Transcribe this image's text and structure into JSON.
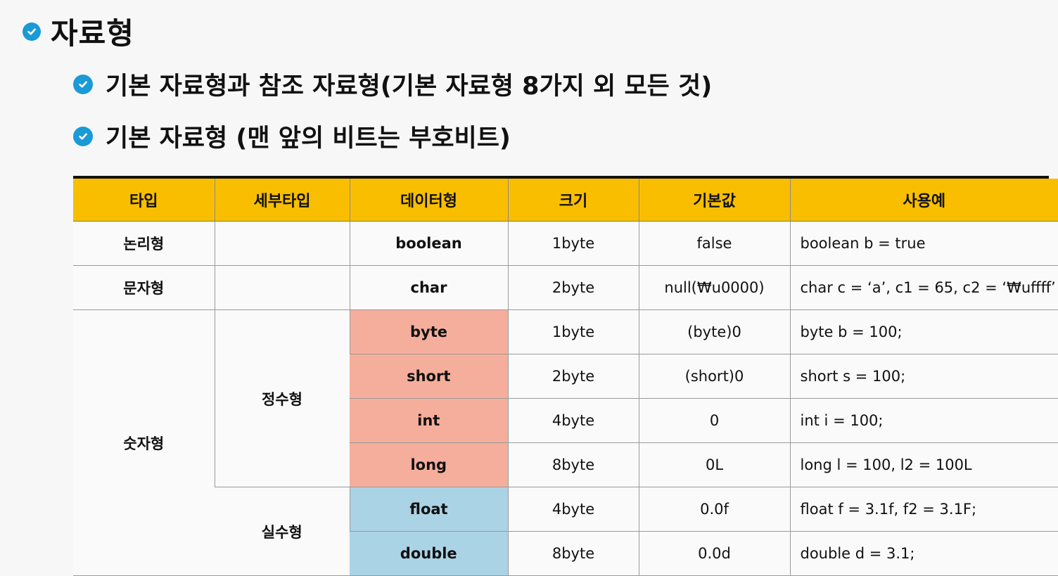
{
  "heading": "자료형",
  "bullets": [
    "기본 자료형과 참조 자료형(기본 자료형 8가지 외 모든 것)",
    "기본 자료형 (맨 앞의 비트는 부호비트)"
  ],
  "colors": {
    "header_bg": "#f9be00",
    "integer_bg": "#f5ae9b",
    "real_bg": "#abd3e6",
    "check_icon": "#1a9ad6"
  },
  "table": {
    "headers": [
      "타입",
      "세부타입",
      "데이터형",
      "크기",
      "기본값",
      "사용예"
    ],
    "groups": {
      "logical": "논리형",
      "character": "문자형",
      "numeric": "숫자형",
      "integer": "정수형",
      "real": "실수형"
    },
    "rows": [
      {
        "type": "boolean",
        "size": "1byte",
        "default": "false",
        "example": "boolean b = true"
      },
      {
        "type": "char",
        "size": "2byte",
        "default": "null(₩u0000)",
        "example": "char c = ‘a’, c1 = 65,  c2 = ‘₩uffff’"
      },
      {
        "type": "byte",
        "size": "1byte",
        "default": "(byte)0",
        "example": "byte b = 100;"
      },
      {
        "type": "short",
        "size": "2byte",
        "default": "(short)0",
        "example": "short s = 100;"
      },
      {
        "type": "int",
        "size": "4byte",
        "default": "0",
        "example": "int i = 100;"
      },
      {
        "type": "long",
        "size": "8byte",
        "default": "0L",
        "example": "long l = 100,  l2 = 100L"
      },
      {
        "type": "float",
        "size": "4byte",
        "default": "0.0f",
        "example": "float f = 3.1f,  f2 = 3.1F;"
      },
      {
        "type": "double",
        "size": "8byte",
        "default": "0.0d",
        "example": "double d = 3.1;"
      }
    ]
  }
}
